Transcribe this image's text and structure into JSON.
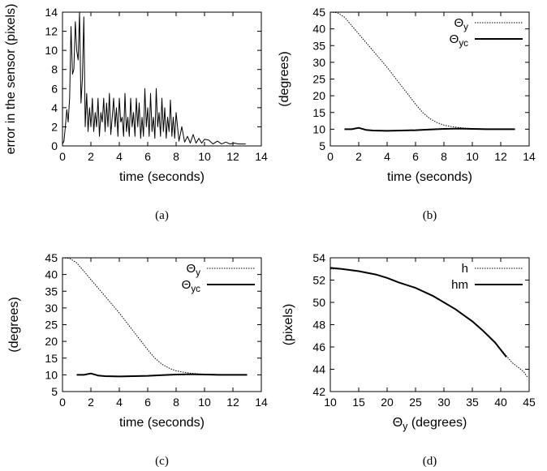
{
  "chart_data": [
    {
      "type": "line",
      "caption": "(a)",
      "xlabel": "time (seconds)",
      "ylabel": "error in the sensor (pixels)",
      "xlim": [
        0,
        14
      ],
      "ylim": [
        0,
        14
      ],
      "xticks": [
        0,
        2,
        4,
        6,
        8,
        10,
        12,
        14
      ],
      "yticks": [
        0,
        2,
        4,
        6,
        8,
        10,
        12,
        14
      ],
      "series": [
        {
          "style": "solid",
          "x": [
            0,
            0.1,
            0.2,
            0.3,
            0.4,
            0.5,
            0.6,
            0.7,
            0.8,
            0.9,
            1.0,
            1.1,
            1.2,
            1.3,
            1.4,
            1.5,
            1.6,
            1.7,
            1.8,
            1.9,
            2.0,
            2.1,
            2.2,
            2.3,
            2.4,
            2.5,
            2.6,
            2.7,
            2.8,
            2.9,
            3.0,
            3.1,
            3.2,
            3.3,
            3.4,
            3.5,
            3.6,
            3.7,
            3.8,
            3.9,
            4.0,
            4.1,
            4.2,
            4.3,
            4.4,
            4.5,
            4.6,
            4.7,
            4.8,
            4.9,
            5.0,
            5.1,
            5.2,
            5.3,
            5.4,
            5.5,
            5.6,
            5.7,
            5.8,
            5.9,
            6.0,
            6.1,
            6.2,
            6.3,
            6.4,
            6.5,
            6.6,
            6.7,
            6.8,
            6.9,
            7.0,
            7.1,
            7.2,
            7.3,
            7.4,
            7.5,
            7.6,
            7.7,
            7.8,
            7.9,
            8.0,
            8.2,
            8.4,
            8.6,
            8.8,
            9.0,
            9.2,
            9.4,
            9.6,
            9.8,
            10.0,
            10.3,
            10.6,
            10.9,
            11.2,
            11.5,
            11.8,
            12.1,
            12.4,
            12.7,
            12.9
          ],
          "y": [
            0.2,
            0.5,
            2.0,
            3.8,
            2.5,
            5.0,
            12.5,
            7.5,
            8.0,
            13.0,
            10.0,
            9.0,
            14.0,
            4.5,
            7.0,
            13.5,
            2.0,
            5.5,
            1.5,
            4.0,
            2.0,
            5.0,
            1.5,
            3.5,
            2.0,
            5.0,
            1.0,
            3.5,
            2.5,
            5.0,
            1.5,
            4.5,
            2.0,
            5.5,
            1.2,
            3.0,
            5.0,
            2.0,
            4.0,
            1.0,
            5.0,
            2.5,
            3.0,
            1.0,
            5.5,
            1.5,
            3.0,
            1.0,
            5.0,
            2.0,
            3.5,
            1.0,
            5.0,
            2.0,
            4.5,
            0.8,
            3.0,
            1.0,
            6.0,
            2.0,
            4.0,
            1.0,
            5.5,
            1.5,
            3.0,
            0.8,
            6.0,
            2.0,
            3.5,
            1.0,
            5.0,
            1.5,
            4.0,
            0.8,
            3.0,
            1.5,
            4.8,
            1.0,
            3.0,
            0.8,
            3.5,
            0.5,
            2.0,
            0.4,
            1.0,
            0.3,
            1.2,
            0.3,
            0.8,
            0.3,
            0.7,
            0.6,
            0.2,
            0.5,
            0.2,
            0.4,
            0.2,
            0.3,
            0.2,
            0.2,
            0.2
          ]
        }
      ]
    },
    {
      "type": "line",
      "caption": "(b)",
      "xlabel": "time (seconds)",
      "ylabel": "(degrees)",
      "xlim": [
        0,
        14
      ],
      "ylim": [
        5,
        45
      ],
      "xticks": [
        0,
        2,
        4,
        6,
        8,
        10,
        12,
        14
      ],
      "yticks": [
        5,
        10,
        15,
        20,
        25,
        30,
        35,
        40,
        45
      ],
      "legend": "top-right",
      "series": [
        {
          "name": "Θy",
          "style": "dotted",
          "x": [
            0,
            0.5,
            1.0,
            2.0,
            3.0,
            4.0,
            5.0,
            6.0,
            6.5,
            7.0,
            7.5,
            8.0,
            8.5,
            9.0,
            9.5,
            10.0,
            11.0,
            12.0,
            13.0
          ],
          "y": [
            45,
            44.8,
            43.5,
            38.5,
            33.5,
            28.5,
            23.0,
            17.5,
            15.0,
            13.2,
            12.0,
            11.2,
            10.8,
            10.5,
            10.3,
            10.2,
            10.1,
            10.0,
            10.0
          ]
        },
        {
          "name": "Θyc",
          "style": "solid",
          "x": [
            1.0,
            1.5,
            2.0,
            2.5,
            3.0,
            4.0,
            5.0,
            6.0,
            7.0,
            8.0,
            9.0,
            10.0,
            11.0,
            12.0,
            13.0
          ],
          "y": [
            10.0,
            10.0,
            10.4,
            9.8,
            9.6,
            9.5,
            9.6,
            9.7,
            9.9,
            10.1,
            10.2,
            10.1,
            10.0,
            10.0,
            10.0
          ]
        }
      ]
    },
    {
      "type": "line",
      "caption": "(c)",
      "xlabel": "time (seconds)",
      "ylabel": "(degrees)",
      "xlim": [
        0,
        14
      ],
      "ylim": [
        5,
        45
      ],
      "xticks": [
        0,
        2,
        4,
        6,
        8,
        10,
        12,
        14
      ],
      "yticks": [
        5,
        10,
        15,
        20,
        25,
        30,
        35,
        40,
        45
      ],
      "legend": "top-right",
      "series": [
        {
          "name": "Θy",
          "style": "dotted",
          "x": [
            0,
            0.5,
            1.0,
            2.0,
            3.0,
            4.0,
            5.0,
            6.0,
            6.5,
            7.0,
            7.5,
            8.0,
            8.5,
            9.0,
            9.5,
            10.0,
            11.0,
            12.0,
            13.0
          ],
          "y": [
            45,
            44.8,
            43.5,
            38.5,
            33.5,
            28.5,
            23.0,
            17.5,
            15.0,
            13.2,
            12.0,
            11.2,
            10.8,
            10.5,
            10.3,
            10.2,
            10.1,
            10.0,
            10.0
          ]
        },
        {
          "name": "Θyc",
          "style": "solid",
          "x": [
            1.0,
            1.5,
            2.0,
            2.5,
            3.0,
            4.0,
            5.0,
            6.0,
            7.0,
            8.0,
            9.0,
            10.0,
            11.0,
            12.0,
            13.0
          ],
          "y": [
            10.0,
            10.0,
            10.4,
            9.8,
            9.6,
            9.5,
            9.6,
            9.7,
            9.9,
            10.1,
            10.2,
            10.1,
            10.0,
            10.0,
            10.0
          ]
        }
      ]
    },
    {
      "type": "line",
      "caption": "(d)",
      "xlabel": "Θy (degrees)",
      "ylabel": "(pixels)",
      "xlim": [
        10,
        45
      ],
      "ylim": [
        42,
        54
      ],
      "xticks": [
        10,
        15,
        20,
        25,
        30,
        35,
        40,
        45
      ],
      "yticks": [
        42,
        44,
        46,
        48,
        50,
        52,
        54
      ],
      "legend": "top-right",
      "series": [
        {
          "name": "h",
          "style": "dotted",
          "x": [
            10,
            12,
            15,
            18,
            20,
            22,
            25,
            28,
            30,
            32,
            35,
            37,
            39,
            41,
            42,
            43,
            44,
            44.7
          ],
          "y": [
            53.0,
            53.0,
            52.8,
            52.5,
            52.2,
            51.8,
            51.3,
            50.6,
            50.0,
            49.4,
            48.3,
            47.4,
            46.4,
            45.2,
            44.6,
            44.2,
            43.8,
            43.3
          ]
        },
        {
          "name": "hm",
          "style": "solid",
          "x": [
            10,
            12,
            15,
            18,
            20,
            22,
            25,
            28,
            30,
            32,
            35,
            37,
            39,
            41
          ],
          "y": [
            53.1,
            53.0,
            52.8,
            52.5,
            52.2,
            51.8,
            51.3,
            50.6,
            50.0,
            49.4,
            48.3,
            47.4,
            46.4,
            45.1
          ]
        }
      ]
    }
  ]
}
